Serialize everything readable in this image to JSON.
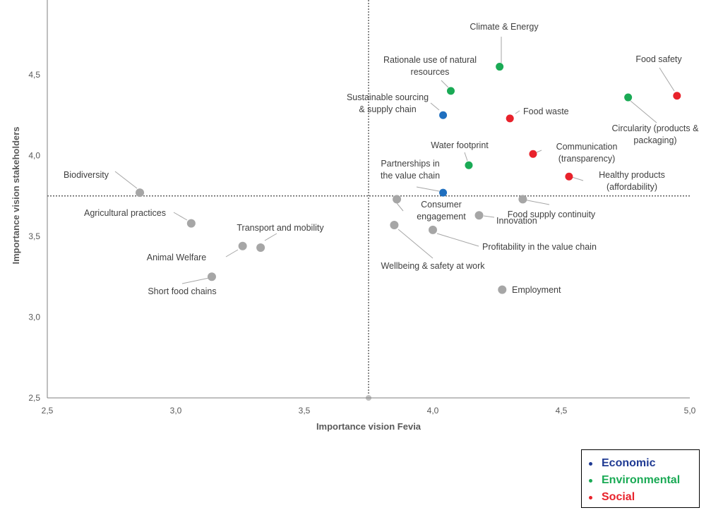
{
  "chart_data": {
    "type": "scatter",
    "xlabel": "Importance vision Fevia",
    "ylabel": "Importance vision stakeholders",
    "xlim": [
      2.5,
      5.0
    ],
    "ylim": [
      2.5,
      5.0
    ],
    "x_ticks": [
      "2,5",
      "3,0",
      "3,5",
      "4,0",
      "4,5",
      "5,0"
    ],
    "y_ticks": [
      "2,5",
      "3,0",
      "3,5",
      "4,0",
      "4,5"
    ],
    "reference_lines": {
      "x": 3.75,
      "y": 3.75
    },
    "categories": {
      "economic": {
        "label": "Economic",
        "color": "#1f6fbf",
        "text_color": "#1f3a93"
      },
      "environmental": {
        "label": "Environmental",
        "color": "#1aaa55",
        "text_color": "#1aaa55"
      },
      "social": {
        "label": "Social",
        "color": "#e8222b",
        "text_color": "#e8222b"
      },
      "other": {
        "label": "",
        "color": "#a6a6a6",
        "text_color": "#a6a6a6"
      }
    },
    "points": [
      {
        "label": "Climate & Energy",
        "x": 4.26,
        "y": 4.55,
        "category": "environmental"
      },
      {
        "label": "Rationale use of natural resources",
        "x": 4.07,
        "y": 4.4,
        "category": "environmental"
      },
      {
        "label": "Sustainable sourcing & supply chain",
        "x": 4.04,
        "y": 4.25,
        "category": "economic"
      },
      {
        "label": "Food safety",
        "x": 4.95,
        "y": 4.37,
        "category": "social"
      },
      {
        "label": "Circularity (products & packaging)",
        "x": 4.76,
        "y": 4.36,
        "category": "environmental"
      },
      {
        "label": "Food waste",
        "x": 4.3,
        "y": 4.23,
        "category": "social"
      },
      {
        "label": "Water footprint",
        "x": 4.14,
        "y": 3.94,
        "category": "environmental"
      },
      {
        "label": "Communication (transparency)",
        "x": 4.39,
        "y": 4.01,
        "category": "social"
      },
      {
        "label": "Healthy products (affordability)",
        "x": 4.53,
        "y": 3.87,
        "category": "social"
      },
      {
        "label": "Partnerships in the value chain",
        "x": 4.04,
        "y": 3.77,
        "category": "economic"
      },
      {
        "label": "Consumer engagement",
        "x": 3.86,
        "y": 3.73,
        "category": "other"
      },
      {
        "label": "Food supply continuity",
        "x": 4.35,
        "y": 3.73,
        "category": "other"
      },
      {
        "label": "Innovation",
        "x": 4.18,
        "y": 3.63,
        "category": "other"
      },
      {
        "label": "Profitability in the value chain",
        "x": 4.0,
        "y": 3.54,
        "category": "other"
      },
      {
        "label": "Wellbeing & safety at work",
        "x": 3.85,
        "y": 3.57,
        "category": "other"
      },
      {
        "label": "Employment",
        "x": 4.27,
        "y": 3.17,
        "category": "other"
      },
      {
        "label": "Biodiversity",
        "x": 2.86,
        "y": 3.77,
        "category": "other"
      },
      {
        "label": "Agricultural practices",
        "x": 3.06,
        "y": 3.58,
        "category": "other"
      },
      {
        "label": "Transport and mobility",
        "x": 3.33,
        "y": 3.43,
        "category": "other"
      },
      {
        "label": "Animal Welfare",
        "x": 3.26,
        "y": 3.44,
        "category": "other"
      },
      {
        "label": "Short food chains",
        "x": 3.14,
        "y": 3.25,
        "category": "other"
      }
    ],
    "legend": {
      "placement": "bottom-right",
      "items": [
        "Economic",
        "Environmental",
        "Social"
      ]
    }
  }
}
